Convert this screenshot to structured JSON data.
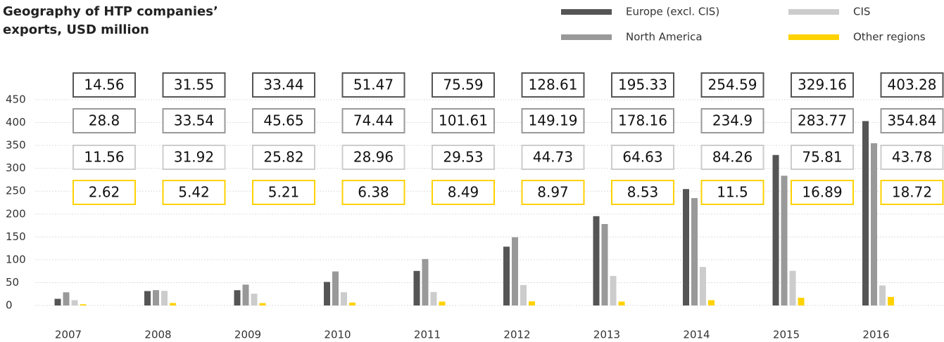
{
  "chart_data": {
    "type": "bar",
    "title": "Geography of HTP companies’ exports, USD million",
    "categories": [
      "2007",
      "2008",
      "2009",
      "2010",
      "2011",
      "2012",
      "2013",
      "2014",
      "2015",
      "2016"
    ],
    "series": [
      {
        "name": "Europe (excl. CIS)",
        "color": "#555555",
        "values": [
          14.56,
          31.55,
          33.44,
          51.47,
          75.59,
          128.61,
          195.33,
          254.59,
          329.16,
          403.28
        ]
      },
      {
        "name": "North America",
        "color": "#999999",
        "values": [
          28.8,
          33.54,
          45.65,
          74.44,
          101.61,
          149.19,
          178.16,
          234.9,
          283.77,
          354.84
        ]
      },
      {
        "name": "CIS",
        "color": "#cccccc",
        "values": [
          11.56,
          31.92,
          25.82,
          28.96,
          29.53,
          44.73,
          64.63,
          84.26,
          75.81,
          43.78
        ]
      },
      {
        "name": "Other regions",
        "color": "#ffd200",
        "values": [
          2.62,
          5.42,
          5.21,
          6.38,
          8.49,
          8.97,
          8.53,
          11.5,
          16.89,
          18.72
        ]
      }
    ],
    "ylim": [
      0,
      450
    ],
    "yticks": [
      0,
      50,
      100,
      150,
      200,
      250,
      300,
      350,
      400,
      450
    ],
    "grid": true
  }
}
